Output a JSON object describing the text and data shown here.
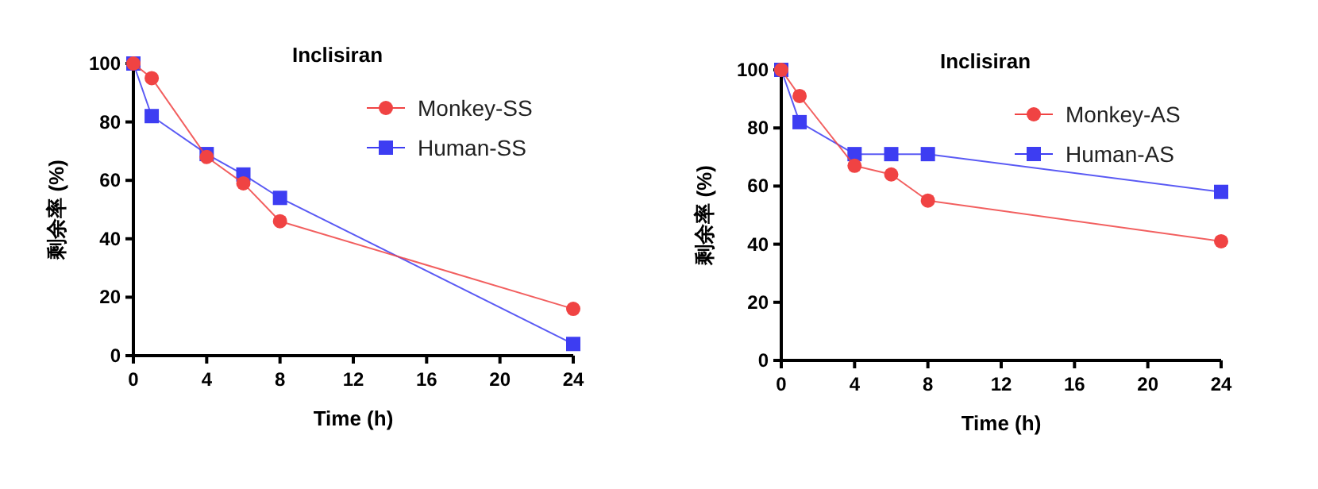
{
  "chart_data": [
    {
      "type": "line",
      "title": "Inclisiran",
      "xlabel": "Time (h)",
      "ylabel": "剩余率 (%)",
      "x": [
        0,
        1,
        4,
        6,
        8,
        24
      ],
      "xlim": [
        0,
        24
      ],
      "xticks": [
        0,
        4,
        8,
        12,
        16,
        20,
        24
      ],
      "ylim": [
        0,
        100
      ],
      "yticks": [
        0,
        20,
        40,
        60,
        80,
        100
      ],
      "grid": false,
      "legend": "top right",
      "line_style": "solid",
      "series": [
        {
          "name": "Monkey-SS",
          "color": "#f04343",
          "marker": "circle",
          "values": [
            100,
            95,
            68,
            59,
            46,
            16
          ]
        },
        {
          "name": "Human-SS",
          "color": "#3d3df2",
          "marker": "square",
          "values": [
            100,
            82,
            69,
            62,
            54,
            4
          ]
        }
      ]
    },
    {
      "type": "line",
      "title": "Inclisiran",
      "xlabel": "Time (h)",
      "ylabel": "剩余率 (%)",
      "x": [
        0,
        1,
        4,
        6,
        8,
        24
      ],
      "xlim": [
        0,
        24
      ],
      "xticks": [
        0,
        4,
        8,
        12,
        16,
        20,
        24
      ],
      "ylim": [
        0,
        100
      ],
      "yticks": [
        0,
        20,
        40,
        60,
        80,
        100
      ],
      "grid": false,
      "legend": "top right",
      "line_style": "solid",
      "series": [
        {
          "name": "Monkey-AS",
          "color": "#f04343",
          "marker": "circle",
          "values": [
            100,
            91,
            67,
            64,
            55,
            41
          ]
        },
        {
          "name": "Human-AS",
          "color": "#3d3df2",
          "marker": "square",
          "values": [
            100,
            82,
            71,
            71,
            71,
            58
          ]
        }
      ]
    }
  ]
}
